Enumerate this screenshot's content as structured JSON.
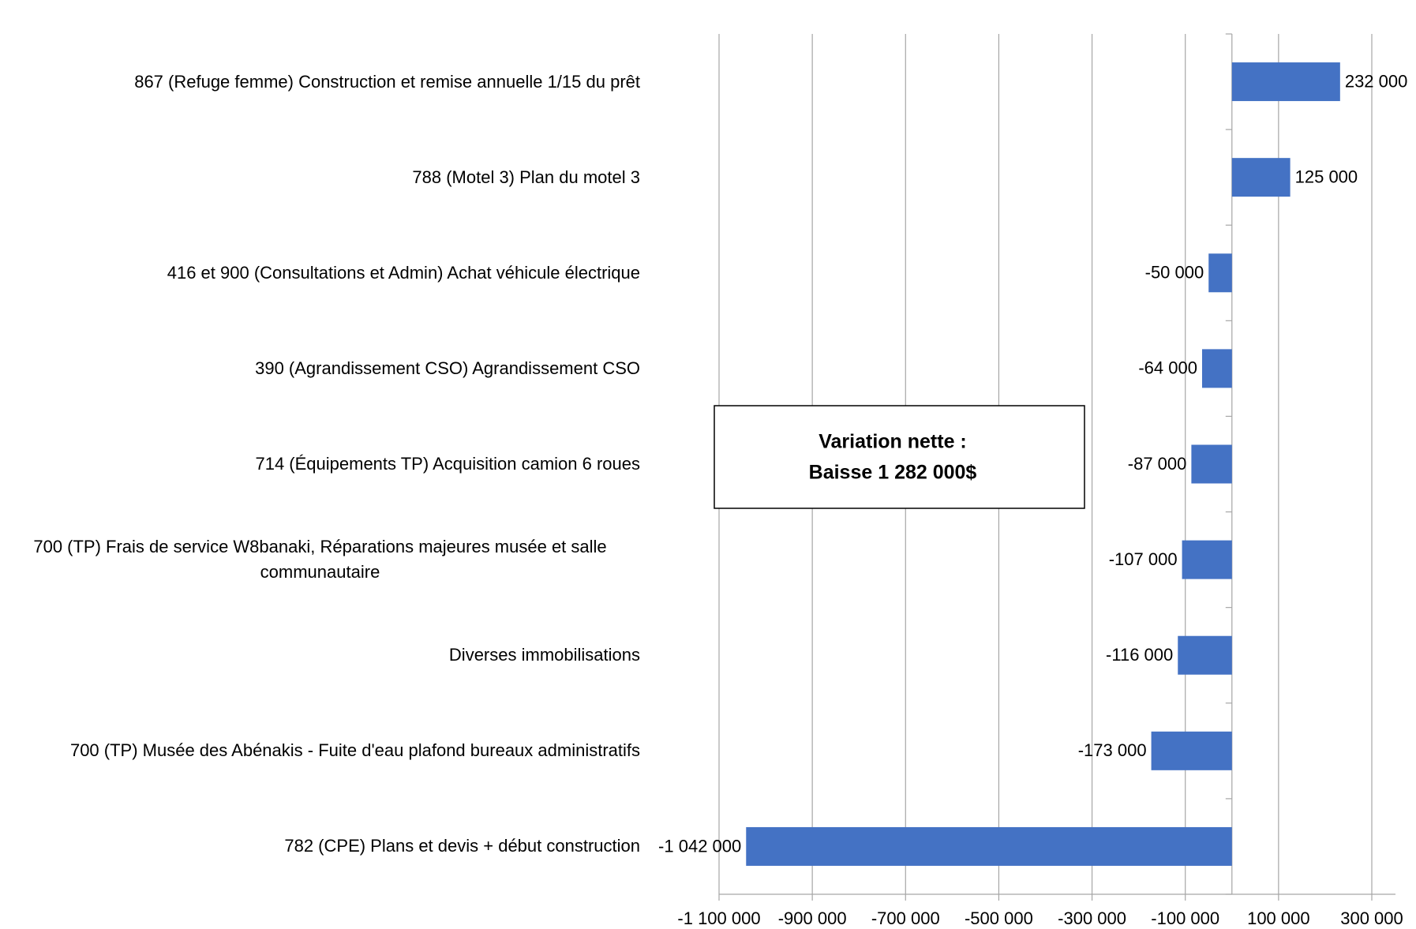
{
  "chart_data": {
    "type": "hbar",
    "categories": [
      "867 (Refuge femme) Construction et remise annuelle 1/15 du prêt",
      "788 (Motel 3) Plan du motel 3",
      "416 et 900 (Consultations et Admin) Achat véhicule électrique",
      "390 (Agrandissement CSO) Agrandissement CSO",
      "714 (Équipements TP) Acquisition camion 6 roues",
      "700 (TP) Frais de service W8banaki, Réparations majeures musée et salle communautaire",
      "Diverses immobilisations",
      "700 (TP) Musée des Abénakis - Fuite d'eau plafond bureaux administratifs",
      "782 (CPE) Plans et devis + début construction"
    ],
    "values": [
      232000,
      125000,
      -50000,
      -64000,
      -87000,
      -107000,
      -116000,
      -173000,
      -1042000
    ],
    "value_labels": [
      "232 000",
      "125 000",
      "-50 000",
      "-64 000",
      "-87 000",
      "-107 000",
      "-116 000",
      "-173 000",
      "-1 042 000"
    ],
    "color": "#4472c4",
    "xlim": [
      -1100000,
      300000
    ],
    "xticks": [
      {
        "value": -1100000,
        "label": "-1 100 000"
      },
      {
        "value": -900000,
        "label": "-900 000"
      },
      {
        "value": -700000,
        "label": "-700 000"
      },
      {
        "value": -500000,
        "label": "-500 000"
      },
      {
        "value": -300000,
        "label": "-300 000"
      },
      {
        "value": -100000,
        "label": "-100 000"
      },
      {
        "value": 100000,
        "label": "100 000"
      },
      {
        "value": 300000,
        "label": "300 000"
      }
    ],
    "grid": true,
    "annotation": [
      "Variation nette :",
      "Baisse 1 282 000$"
    ]
  }
}
